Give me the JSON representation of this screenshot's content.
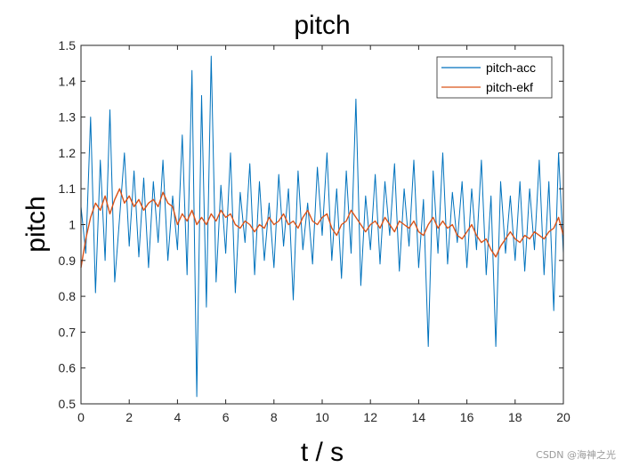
{
  "watermark": "CSDN @海神之光",
  "chart_data": {
    "type": "line",
    "title": "pitch",
    "xlabel": "t / s",
    "ylabel": "pitch",
    "xlim": [
      0,
      20
    ],
    "ylim": [
      0.5,
      1.5
    ],
    "xticks": [
      0,
      2,
      4,
      6,
      8,
      10,
      12,
      14,
      16,
      18,
      20
    ],
    "yticks": [
      0.5,
      0.6,
      0.7,
      0.8,
      0.9,
      1.0,
      1.1,
      1.2,
      1.3,
      1.4,
      1.5
    ],
    "xtick_labels": [
      "0",
      "2",
      "4",
      "6",
      "8",
      "10",
      "12",
      "14",
      "16",
      "18",
      "20"
    ],
    "ytick_labels": [
      "0.5",
      "0.6",
      "0.7",
      "0.8",
      "0.9",
      "1",
      "1.1",
      "1.2",
      "1.3",
      "1.4",
      "1.5"
    ],
    "grid": false,
    "legend_position": "top-right",
    "series": [
      {
        "name": "pitch-acc",
        "color": "#0072BD",
        "x": [
          0.0,
          0.2,
          0.4,
          0.6,
          0.8,
          1.0,
          1.2,
          1.4,
          1.6,
          1.8,
          2.0,
          2.2,
          2.4,
          2.6,
          2.8,
          3.0,
          3.2,
          3.4,
          3.6,
          3.8,
          4.0,
          4.2,
          4.4,
          4.6,
          4.8,
          5.0,
          5.2,
          5.4,
          5.6,
          5.8,
          6.0,
          6.2,
          6.4,
          6.6,
          6.8,
          7.0,
          7.2,
          7.4,
          7.6,
          7.8,
          8.0,
          8.2,
          8.4,
          8.6,
          8.8,
          9.0,
          9.2,
          9.4,
          9.6,
          9.8,
          10.0,
          10.2,
          10.4,
          10.6,
          10.8,
          11.0,
          11.2,
          11.4,
          11.6,
          11.8,
          12.0,
          12.2,
          12.4,
          12.6,
          12.8,
          13.0,
          13.2,
          13.4,
          13.6,
          13.8,
          14.0,
          14.2,
          14.4,
          14.6,
          14.8,
          15.0,
          15.2,
          15.4,
          15.6,
          15.8,
          16.0,
          16.2,
          16.4,
          16.6,
          16.8,
          17.0,
          17.2,
          17.4,
          17.6,
          17.8,
          18.0,
          18.2,
          18.4,
          18.6,
          18.8,
          19.0,
          19.2,
          19.4,
          19.6,
          19.8,
          20.0
        ],
        "y": [
          1.05,
          0.92,
          1.3,
          0.81,
          1.18,
          0.9,
          1.32,
          0.84,
          1.02,
          1.2,
          0.94,
          1.15,
          0.91,
          1.13,
          0.88,
          1.12,
          0.95,
          1.18,
          0.9,
          1.08,
          0.93,
          1.25,
          0.86,
          1.43,
          0.52,
          1.36,
          0.77,
          1.47,
          0.84,
          1.11,
          0.92,
          1.2,
          0.81,
          1.09,
          0.95,
          1.17,
          0.86,
          1.12,
          0.9,
          1.06,
          0.88,
          1.14,
          0.94,
          1.1,
          0.79,
          1.15,
          0.93,
          1.06,
          0.89,
          1.16,
          0.97,
          1.2,
          0.9,
          1.1,
          0.85,
          1.15,
          0.92,
          1.35,
          0.83,
          1.08,
          0.93,
          1.14,
          0.89,
          1.12,
          0.97,
          1.17,
          0.87,
          1.1,
          0.94,
          1.18,
          0.88,
          1.07,
          0.66,
          1.15,
          0.92,
          1.2,
          0.89,
          1.09,
          0.95,
          1.12,
          0.88,
          1.1,
          0.93,
          1.18,
          0.86,
          1.08,
          0.66,
          1.12,
          0.92,
          1.08,
          0.9,
          1.12,
          0.87,
          1.1,
          0.93,
          1.18,
          0.86,
          1.12,
          0.76,
          1.2,
          0.92
        ]
      },
      {
        "name": "pitch-ekf",
        "color": "#D95319",
        "x": [
          0.0,
          0.2,
          0.4,
          0.6,
          0.8,
          1.0,
          1.2,
          1.4,
          1.6,
          1.8,
          2.0,
          2.2,
          2.4,
          2.6,
          2.8,
          3.0,
          3.2,
          3.4,
          3.6,
          3.8,
          4.0,
          4.2,
          4.4,
          4.6,
          4.8,
          5.0,
          5.2,
          5.4,
          5.6,
          5.8,
          6.0,
          6.2,
          6.4,
          6.6,
          6.8,
          7.0,
          7.2,
          7.4,
          7.6,
          7.8,
          8.0,
          8.2,
          8.4,
          8.6,
          8.8,
          9.0,
          9.2,
          9.4,
          9.6,
          9.8,
          10.0,
          10.2,
          10.4,
          10.6,
          10.8,
          11.0,
          11.2,
          11.4,
          11.6,
          11.8,
          12.0,
          12.2,
          12.4,
          12.6,
          12.8,
          13.0,
          13.2,
          13.4,
          13.6,
          13.8,
          14.0,
          14.2,
          14.4,
          14.6,
          14.8,
          15.0,
          15.2,
          15.4,
          15.6,
          15.8,
          16.0,
          16.2,
          16.4,
          16.6,
          16.8,
          17.0,
          17.2,
          17.4,
          17.6,
          17.8,
          18.0,
          18.2,
          18.4,
          18.6,
          18.8,
          19.0,
          19.2,
          19.4,
          19.6,
          19.8,
          20.0
        ],
        "y": [
          0.88,
          0.96,
          1.02,
          1.06,
          1.04,
          1.08,
          1.03,
          1.07,
          1.1,
          1.06,
          1.08,
          1.05,
          1.07,
          1.04,
          1.06,
          1.07,
          1.05,
          1.09,
          1.06,
          1.05,
          1.0,
          1.03,
          1.01,
          1.04,
          1.0,
          1.02,
          1.0,
          1.03,
          1.01,
          1.04,
          1.02,
          1.03,
          1.0,
          0.99,
          1.01,
          1.0,
          0.98,
          1.0,
          0.99,
          1.02,
          1.0,
          1.01,
          1.03,
          1.0,
          1.01,
          0.99,
          1.02,
          1.04,
          1.01,
          1.0,
          1.02,
          1.03,
          0.99,
          0.97,
          1.0,
          1.01,
          1.04,
          1.02,
          1.0,
          0.98,
          1.0,
          1.01,
          0.99,
          1.02,
          1.0,
          0.98,
          1.01,
          1.0,
          0.99,
          1.01,
          0.98,
          0.97,
          1.0,
          1.02,
          0.99,
          1.01,
          0.99,
          1.0,
          0.97,
          0.96,
          0.98,
          1.0,
          0.97,
          0.95,
          0.96,
          0.93,
          0.91,
          0.94,
          0.96,
          0.98,
          0.96,
          0.95,
          0.97,
          0.96,
          0.98,
          0.97,
          0.96,
          0.98,
          0.99,
          1.02,
          0.97
        ]
      }
    ]
  }
}
